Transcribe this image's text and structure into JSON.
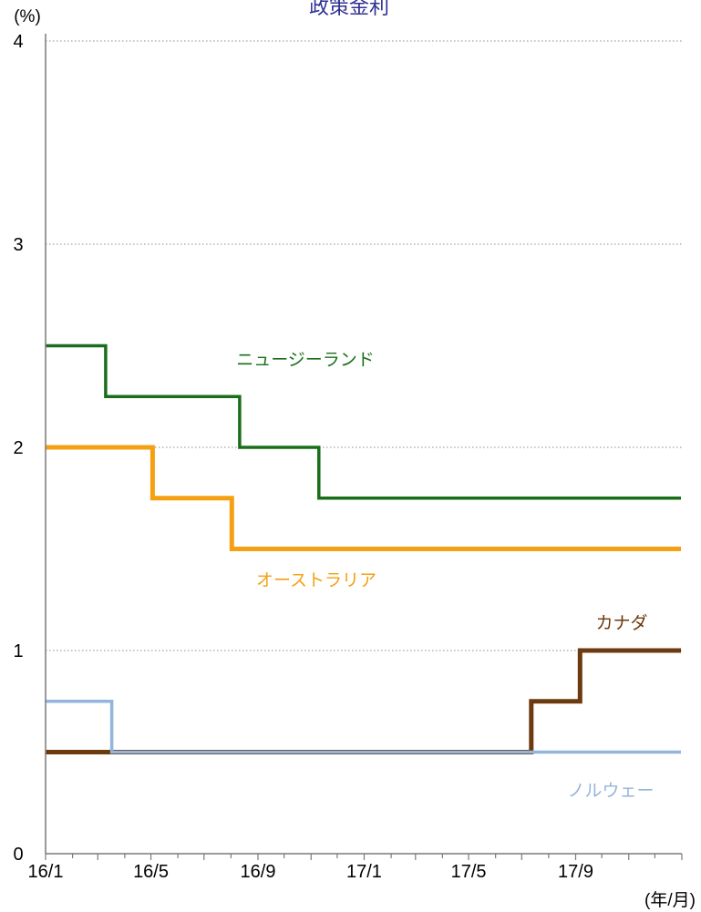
{
  "chart_data": {
    "type": "line",
    "step": true,
    "title": "政策金利",
    "ylabel": "(%)",
    "xlabel": "(年/月)",
    "ylim": [
      0,
      4
    ],
    "yticks": [
      0,
      1,
      2,
      3,
      4
    ],
    "xlim": [
      "2016-01",
      "2017-12"
    ],
    "xticks": [
      "16/1",
      "16/5",
      "16/9",
      "17/1",
      "17/5",
      "17/9"
    ],
    "grid": "horizontal-dotted",
    "series": [
      {
        "name": "ニュージーランド",
        "color": "#1a6e1a",
        "points": [
          [
            "2016-01-01",
            2.5
          ],
          [
            "2016-03-10",
            2.25
          ],
          [
            "2016-08-11",
            2.0
          ],
          [
            "2016-11-10",
            1.75
          ],
          [
            "2017-12-31",
            1.75
          ]
        ]
      },
      {
        "name": "オーストラリア",
        "color": "#f5a012",
        "points": [
          [
            "2016-01-01",
            2.0
          ],
          [
            "2016-05-03",
            1.75
          ],
          [
            "2016-08-02",
            1.5
          ],
          [
            "2017-12-31",
            1.5
          ]
        ]
      },
      {
        "name": "カナダ",
        "color": "#6b3a0f",
        "points": [
          [
            "2016-01-01",
            0.5
          ],
          [
            "2017-07-12",
            0.75
          ],
          [
            "2017-09-06",
            1.0
          ],
          [
            "2017-12-31",
            1.0
          ]
        ]
      },
      {
        "name": "ノルウェー",
        "color": "#93b4dc",
        "points": [
          [
            "2016-01-01",
            0.75
          ],
          [
            "2016-03-17",
            0.5
          ],
          [
            "2017-12-31",
            0.5
          ]
        ]
      }
    ]
  }
}
